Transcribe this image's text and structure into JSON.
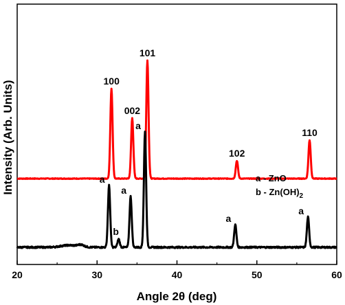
{
  "chart_data": {
    "type": "line",
    "xlabel": "Angle 2θ (deg)",
    "ylabel": "Intensity (Arb. Units)",
    "xlim": [
      20,
      60
    ],
    "x_ticks": [
      "20",
      "30",
      "40",
      "50",
      "60"
    ],
    "y_ticks": "none",
    "grid": false,
    "legend": {
      "placement": "right-middle",
      "entries": [
        {
          "text": "a - ZnO"
        },
        {
          "text": "b - Zn(OH)",
          "subscript": "2"
        }
      ]
    },
    "series": [
      {
        "color": "#ff0000",
        "baseline": 100,
        "peaks": [
          {
            "x": 31.8,
            "height": 131,
            "label": "100"
          },
          {
            "x": 34.4,
            "height": 88,
            "label": "002"
          },
          {
            "x": 36.3,
            "height": 172,
            "label": "101"
          },
          {
            "x": 47.5,
            "height": 26,
            "label": "102"
          },
          {
            "x": 56.6,
            "height": 56,
            "label": "110"
          }
        ]
      },
      {
        "color": "#000000",
        "baseline": 0,
        "peaks": [
          {
            "x": 31.5,
            "height": 90,
            "label": "a"
          },
          {
            "x": 32.7,
            "height": 12,
            "label": "b"
          },
          {
            "x": 34.2,
            "height": 74,
            "label": "a"
          },
          {
            "x": 36.0,
            "height": 168,
            "label": "a"
          },
          {
            "x": 47.3,
            "height": 33,
            "label": "a"
          },
          {
            "x": 56.4,
            "height": 44,
            "label": "a"
          }
        ]
      }
    ]
  }
}
